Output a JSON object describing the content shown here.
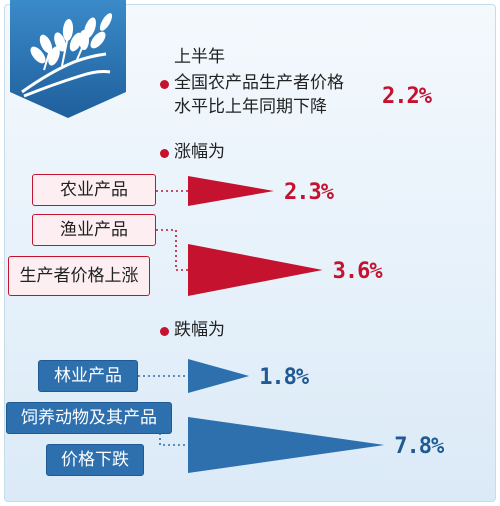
{
  "header": {
    "line1": "上半年",
    "line2": "全国农产品生产者价格",
    "line3": "水平比上年同期下降",
    "value": "2.2%"
  },
  "rise_section": {
    "heading": "涨幅为"
  },
  "fall_section": {
    "heading": "跌幅为"
  },
  "labels": {
    "agri": "农业产品",
    "fishery": "渔业产品",
    "producer_rise": "生产者价格上涨",
    "forestry": "林业产品",
    "livestock": "饲养动物及其产品",
    "price_fall": "价格下跌"
  },
  "icon": "wheat-icon",
  "colors": {
    "rise": "#c4122f",
    "fall": "#2e6fae",
    "accent": "#c4122f"
  },
  "chart_data": {
    "type": "bar",
    "title": "",
    "summary": {
      "label": "全国农产品生产者价格水平比上年同期下降",
      "value": -2.2,
      "unit": "%"
    },
    "series": [
      {
        "name": "涨幅为",
        "categories": [
          "农业产品",
          "渔业产品"
        ],
        "values": [
          2.3,
          3.6
        ],
        "display": [
          "2.3%",
          "3.6%"
        ],
        "color": "#c4122f"
      },
      {
        "name": "跌幅为",
        "categories": [
          "林业产品",
          "饲养动物及其产品"
        ],
        "values": [
          1.8,
          7.8
        ],
        "display": [
          "1.8%",
          "7.8%"
        ],
        "color": "#2e6fae"
      }
    ]
  }
}
